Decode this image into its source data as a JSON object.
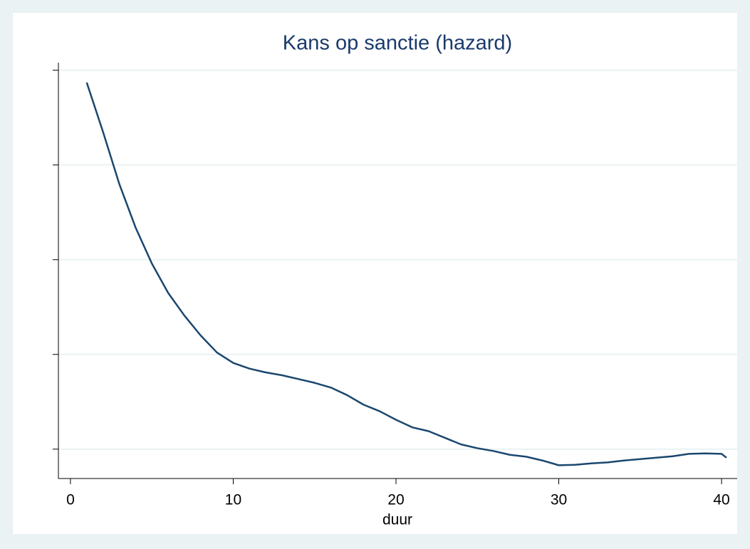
{
  "chart_data": {
    "type": "line",
    "title": "Kans op sanctie (hazard)",
    "x_label": "duur",
    "x": [
      1,
      2,
      3,
      4,
      5,
      6,
      7,
      8,
      9,
      10,
      11,
      12,
      13,
      14,
      15,
      16,
      17,
      18,
      19,
      20,
      21,
      22,
      23,
      24,
      25,
      26,
      27,
      28,
      29,
      30,
      31,
      32,
      33,
      34,
      35,
      36,
      37,
      38,
      39,
      40,
      40.3
    ],
    "series": [
      {
        "name": "hazard",
        "color": "#1a476f",
        "values": [
          3.87,
          3.35,
          2.8,
          2.34,
          1.96,
          1.65,
          1.41,
          1.2,
          1.02,
          0.91,
          0.85,
          0.81,
          0.78,
          0.74,
          0.7,
          0.65,
          0.57,
          0.47,
          0.4,
          0.31,
          0.23,
          0.19,
          0.12,
          0.05,
          0.01,
          -0.02,
          -0.06,
          -0.08,
          -0.12,
          -0.17,
          -0.165,
          -0.15,
          -0.14,
          -0.12,
          -0.105,
          -0.09,
          -0.075,
          -0.05,
          -0.045,
          -0.05,
          -0.09
        ]
      }
    ],
    "xlim": [
      -0.74,
      40.96
    ],
    "xticks": [
      0,
      10,
      20,
      30,
      40
    ],
    "ylim": [
      -0.31,
      4.08
    ],
    "yticks": [
      0,
      1,
      2,
      3,
      4
    ],
    "grid": true
  }
}
